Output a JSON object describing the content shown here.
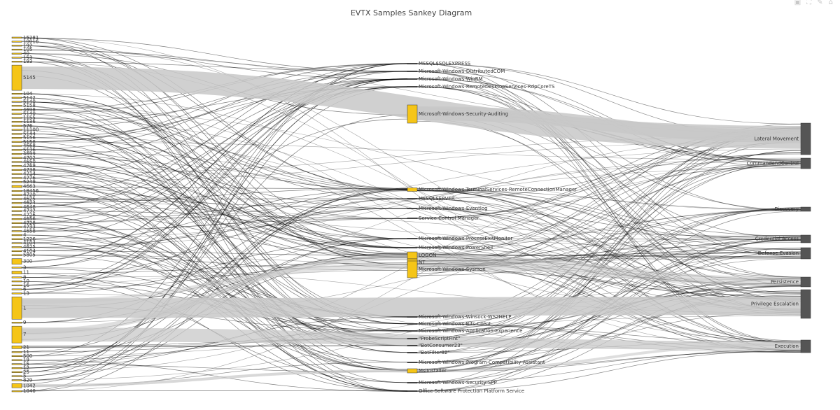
{
  "title": "EVTX Samples Sankey Diagram",
  "modebar": [
    "camera-icon",
    "zoom-icon",
    "pan-icon",
    "reset-icon"
  ],
  "colors": {
    "id_node": "#f5c518",
    "source_node": "#555555",
    "tactic_node": "#555555",
    "link": "#000000",
    "wide_link": "#c8c8c8"
  },
  "event_ids": [
    "15281",
    "10016",
    "192",
    "105",
    "40",
    "153",
    "193",
    "5145",
    "104",
    "5142",
    "5140",
    "5158",
    "4698",
    "5140",
    "1155",
    "1136",
    "576",
    "11100",
    "5144",
    "5156",
    "5158",
    "4668",
    "5136",
    "4699",
    "4702",
    "4650",
    "4769",
    "4738",
    "4714",
    "4776",
    "5249",
    "4663",
    "18456",
    "4720",
    "4625",
    "4624",
    "4648",
    "4732",
    "4726",
    "4656",
    "4728",
    "4733",
    "4658",
    "4",
    "1226",
    "4104",
    "4625",
    "4104",
    "5805",
    "300",
    "3",
    "11",
    "8",
    "10",
    "16",
    "6",
    "13",
    "1",
    "9",
    "7",
    "21",
    "11",
    "500",
    "19",
    "15",
    "12",
    "25",
    "5",
    "829",
    "1042",
    "1040"
  ],
  "sources": [
    "MSSQL$SQLEXPRESS",
    "Microsoft-Windows-DistributedCOM",
    "Microsoft-Windows-WinRM",
    "Microsoft-Windows-RemoteDesktopServices-RdpCoreTS",
    "Microsoft-Windows-Security-Auditing",
    "Microsoft-Windows-TerminalServices-RemoteConnectionManager",
    "MSSQLSERVER",
    "Microsoft-Windows-Eventlog",
    "Service Control Manager",
    "Microsoft-Windows-ProcessExitMonitor",
    "Microsoft-Windows-PowerShell",
    "LOGON",
    "NT",
    "Microsoft-Windows-Sysmon",
    "Microsoft-Windows-Winsock-WS2HELP",
    "Microsoft-Windows-Bits-Client",
    "Microsoft-Windows-Application-Experience",
    "\"ProbeScriptFint\"",
    "\"BotConsumer23\"",
    "\"BotFilter82\"",
    "Microsoft-Windows-Program-Compatibility-Assistant",
    "MsiInstaller",
    "Microsoft-Windows-Security-SPP",
    "Office Software Protection Platform Service"
  ],
  "tactics": [
    "Lateral Movement",
    "CommandandControl",
    "Discovery",
    "Credential Access",
    "Defense Evasion",
    "Persistence",
    "Privilege Escalation",
    "Execution"
  ]
}
